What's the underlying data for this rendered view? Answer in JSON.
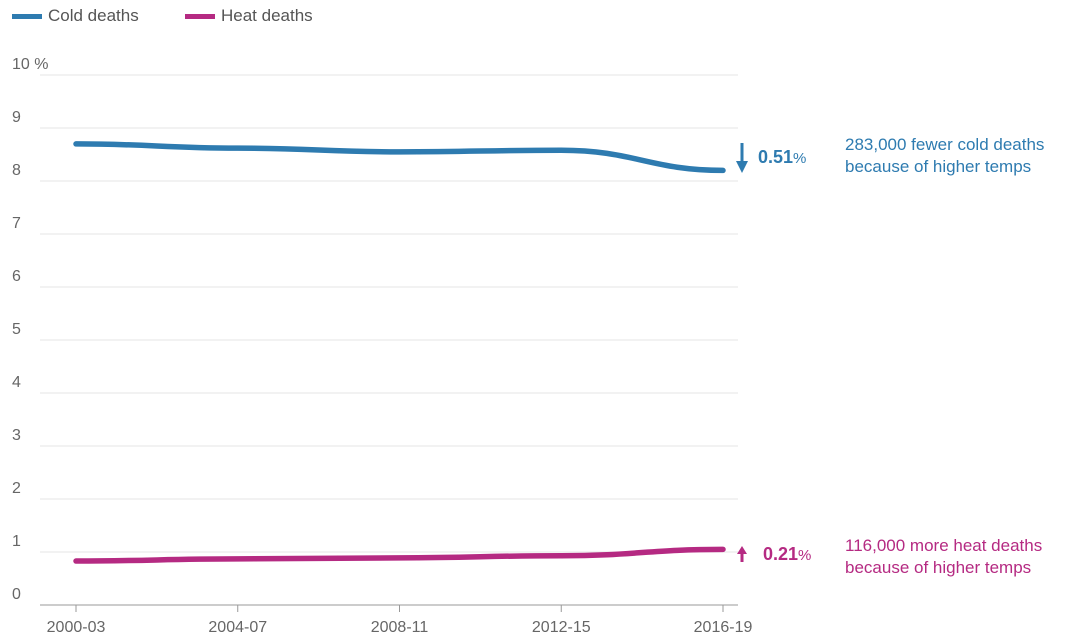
{
  "legend": {
    "cold": "Cold deaths",
    "heat": "Heat deaths"
  },
  "colors": {
    "cold": "#2e7bb0",
    "heat": "#b52a82",
    "grid": "#e6e6e6",
    "tick_text": "#666666"
  },
  "annotations": {
    "cold_change": "0.51",
    "cold_change_unit": "%",
    "cold_note_line1": "283,000 fewer cold deaths",
    "cold_note_line2": "because of higher temps",
    "heat_change": "0.21",
    "heat_change_unit": "%",
    "heat_note_line1": "116,000 more heat deaths",
    "heat_note_line2": "because of higher temps"
  },
  "chart_data": {
    "type": "line",
    "x": [
      "2000-03",
      "2004-07",
      "2008-11",
      "2012-15",
      "2016-19"
    ],
    "y_ticks": [
      "0",
      "1",
      "2",
      "3",
      "4",
      "5",
      "6",
      "7",
      "8",
      "9",
      "10 %"
    ],
    "ylim": [
      0,
      10
    ],
    "grid": true,
    "legend_position": "top-left",
    "series": [
      {
        "name": "Cold deaths",
        "values": [
          8.7,
          8.62,
          8.55,
          8.58,
          8.2
        ]
      },
      {
        "name": "Heat deaths",
        "values": [
          0.83,
          0.87,
          0.89,
          0.93,
          1.05
        ]
      }
    ]
  }
}
